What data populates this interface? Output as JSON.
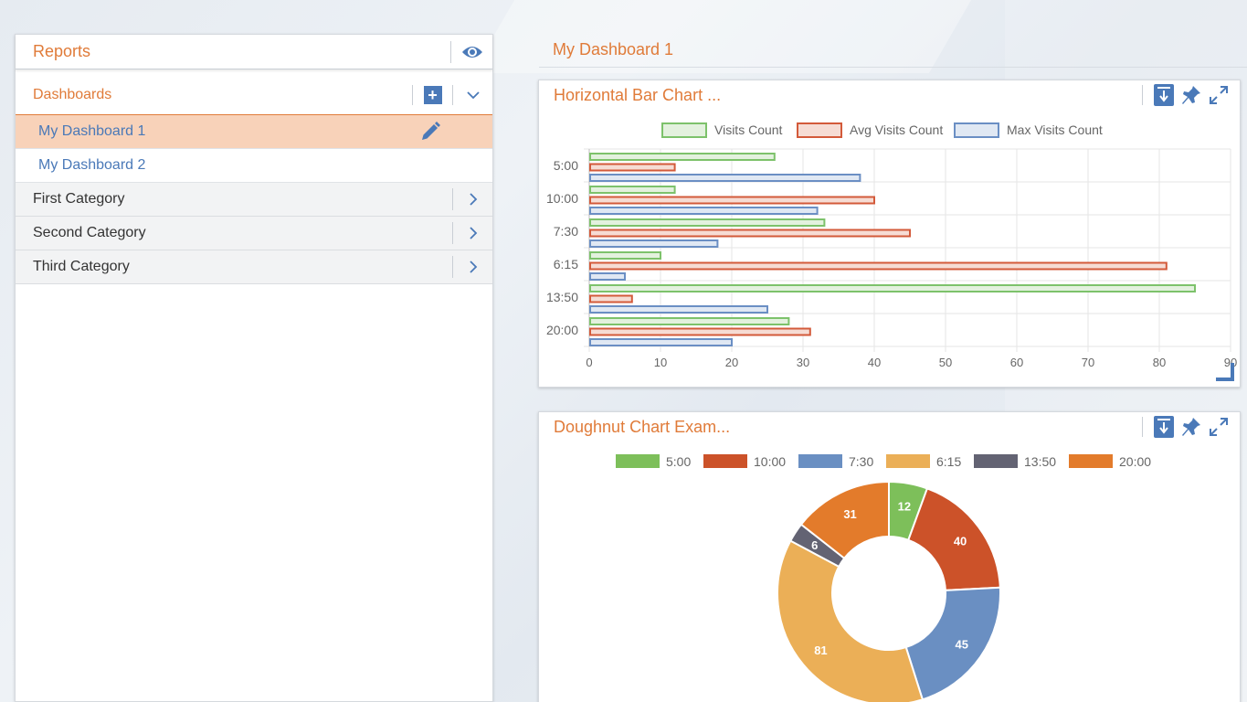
{
  "sidebar": {
    "title": "Reports",
    "section_title": "Dashboards",
    "dashboards": [
      {
        "label": "My Dashboard 1",
        "active": true
      },
      {
        "label": "My Dashboard 2",
        "active": false
      }
    ],
    "categories": [
      {
        "label": "First Category"
      },
      {
        "label": "Second Category"
      },
      {
        "label": "Third Category"
      }
    ]
  },
  "main": {
    "dashboard_title": "My Dashboard 1"
  },
  "widgets": {
    "bar_title": "Horizontal Bar Chart ...",
    "doughnut_title": "Doughnut Chart Exam..."
  },
  "chart_data": [
    {
      "type": "bar",
      "orientation": "horizontal",
      "categories": [
        "5:00",
        "10:00",
        "7:30",
        "6:15",
        "13:50",
        "20:00"
      ],
      "series": [
        {
          "name": "Visits Count",
          "values": [
            26,
            12,
            33,
            10,
            85,
            28
          ],
          "color": "#7dc26b",
          "fill": "#e3f1de"
        },
        {
          "name": "Avg Visits Count",
          "values": [
            12,
            40,
            45,
            81,
            6,
            31
          ],
          "color": "#d35a3a",
          "fill": "#f6dcd4"
        },
        {
          "name": "Max Visits Count",
          "values": [
            38,
            32,
            18,
            5,
            25,
            20
          ],
          "color": "#6b8fc4",
          "fill": "#e0e8f3"
        }
      ],
      "xlim": [
        0,
        90
      ],
      "xticks": [
        0,
        10,
        20,
        30,
        40,
        50,
        60,
        70,
        80,
        90
      ],
      "legend": "top",
      "grid": true
    },
    {
      "type": "pie",
      "variant": "doughnut",
      "labels": [
        "5:00",
        "10:00",
        "7:30",
        "6:15",
        "13:50",
        "20:00"
      ],
      "values": [
        12,
        40,
        45,
        81,
        6,
        31
      ],
      "colors": [
        "#7dbf5a",
        "#cc5229",
        "#6a8fc2",
        "#ebaf57",
        "#636373",
        "#e37b2b"
      ],
      "legend": "top"
    }
  ]
}
